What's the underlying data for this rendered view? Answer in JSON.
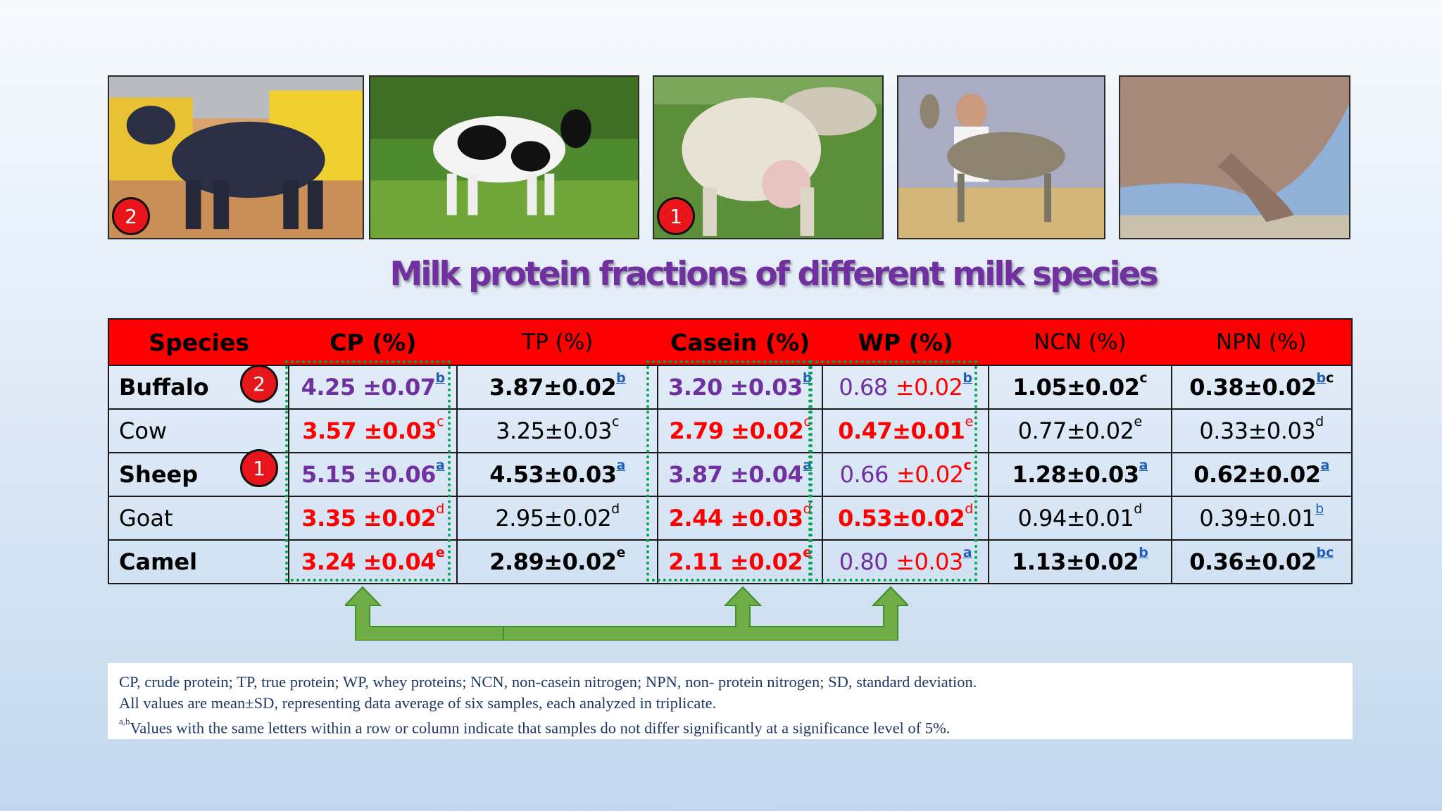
{
  "photos": [
    {
      "id": "buffalo",
      "badge": "2"
    },
    {
      "id": "cow"
    },
    {
      "id": "sheep",
      "badge": "1"
    },
    {
      "id": "goat"
    },
    {
      "id": "camel"
    }
  ],
  "title": "Milk protein fractions of different milk species",
  "table": {
    "headers": [
      "Species",
      "CP (%)",
      "TP (%)",
      "Casein (%)",
      "WP (%)",
      "NCN (%)",
      "NPN (%)"
    ],
    "rows": [
      {
        "species": "Buffalo",
        "badge": "2",
        "cp": "4.25 ±0.07",
        "cp_sup": "b",
        "tp": "3.87±0.02",
        "tp_sup": "b",
        "casein": "3.20 ±0.03",
        "casein_sup": "b",
        "wp_a": "0.68",
        "wp_b": "±0.02",
        "wp_sup": "b",
        "ncn": "1.05±0.02",
        "ncn_sup": "c",
        "npn": "0.38±0.02",
        "npn_sup": "b",
        "npn_sup2": "c"
      },
      {
        "species": "Cow",
        "cp": "3.57 ±0.03",
        "cp_sup": "c",
        "tp": "3.25±0.03",
        "tp_sup": "c",
        "casein": "2.79 ±0.02",
        "casein_sup": "c",
        "wp": "0.47±0.01",
        "wp_sup": "e",
        "ncn": "0.77±0.02",
        "ncn_sup": "e",
        "npn": "0.33±0.03",
        "npn_sup": "d"
      },
      {
        "species": "Sheep",
        "badge": "1",
        "cp": "5.15 ±0.06",
        "cp_sup": "a",
        "tp": "4.53±0.03",
        "tp_sup": "a",
        "casein": "3.87 ±0.04",
        "casein_sup": "a",
        "wp_a": "0.66",
        "wp_b": "±0.02",
        "wp_sup": "c",
        "ncn": "1.28±0.03",
        "ncn_sup": "a",
        "npn": "0.62±0.02",
        "npn_sup": "a"
      },
      {
        "species": "Goat",
        "cp": "3.35 ±0.02",
        "cp_sup": "d",
        "tp": "2.95±0.02",
        "tp_sup": "d",
        "casein": "2.44 ±0.03",
        "casein_sup": "d",
        "wp": "0.53±0.02",
        "wp_sup": "d",
        "ncn": "0.94±0.01",
        "ncn_sup": "d",
        "npn": "0.39±0.01",
        "npn_sup": "b"
      },
      {
        "species": "Camel",
        "cp": "3.24 ±0.04",
        "cp_sup": "e",
        "tp": "2.89±0.02",
        "tp_sup": "e",
        "casein": "2.11 ±0.02",
        "casein_sup": "e",
        "wp_a": "0.80",
        "wp_b": "±0.03",
        "wp_sup": "a",
        "ncn": "1.13±0.02",
        "ncn_sup": "b",
        "npn": "0.36±0.02",
        "npn_sup": "bc"
      }
    ]
  },
  "notes": {
    "line1": "CP, crude protein; TP, true protein; WP, whey proteins; NCN, non-casein nitrogen; NPN, non- protein nitrogen; SD, standard deviation.",
    "line2": "All values are mean±SD, representing data average of six samples, each analyzed in triplicate.",
    "line3_sup": "a,b",
    "line3": "Values with the same letters within a row or column indicate that samples do not differ significantly at a significance level of 5%."
  },
  "colors": {
    "header_bg": "#ff0000",
    "title": "#7030a0",
    "highlight": "#00a651",
    "arrow": "#70ad47"
  }
}
